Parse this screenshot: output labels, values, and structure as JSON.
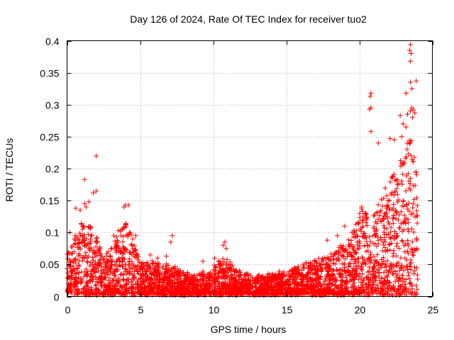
{
  "chart_data": {
    "type": "scatter",
    "title": "Day 126 of 2024, Rate Of TEC Index for receiver tuo2",
    "xlabel": "GPS time / hours",
    "ylabel": "ROTI / TECUs",
    "xlim": [
      0,
      25
    ],
    "ylim": [
      0,
      0.4
    ],
    "xticks": [
      "0",
      "5",
      "10",
      "15",
      "20",
      "25"
    ],
    "yticks": [
      "0",
      "0.05",
      "0.1",
      "0.15",
      "0.2",
      "0.25",
      "0.3",
      "0.35",
      "0.4"
    ],
    "xtick_values": [
      0,
      5,
      10,
      15,
      20,
      25
    ],
    "ytick_values": [
      0,
      0.05,
      0.1,
      0.15,
      0.2,
      0.25,
      0.3,
      0.35,
      0.4
    ],
    "grid": true,
    "marker": "plus",
    "color": "#ff0000",
    "envelope": [
      [
        0.0,
        0.06
      ],
      [
        0.5,
        0.09
      ],
      [
        1.0,
        0.12
      ],
      [
        1.5,
        0.11
      ],
      [
        2.0,
        0.1
      ],
      [
        2.5,
        0.06
      ],
      [
        3.0,
        0.07
      ],
      [
        3.5,
        0.1
      ],
      [
        4.0,
        0.12
      ],
      [
        4.5,
        0.09
      ],
      [
        5.0,
        0.05
      ],
      [
        6.0,
        0.05
      ],
      [
        7.0,
        0.05
      ],
      [
        8.0,
        0.035
      ],
      [
        9.0,
        0.03
      ],
      [
        10.0,
        0.045
      ],
      [
        10.8,
        0.06
      ],
      [
        11.5,
        0.04
      ],
      [
        12.5,
        0.03
      ],
      [
        13.5,
        0.03
      ],
      [
        14.5,
        0.035
      ],
      [
        15.5,
        0.04
      ],
      [
        16.5,
        0.05
      ],
      [
        17.5,
        0.06
      ],
      [
        18.5,
        0.07
      ],
      [
        19.5,
        0.09
      ],
      [
        20.2,
        0.14
      ],
      [
        20.8,
        0.12
      ],
      [
        21.5,
        0.15
      ],
      [
        22.0,
        0.18
      ],
      [
        22.5,
        0.2
      ],
      [
        23.0,
        0.22
      ],
      [
        23.5,
        0.26
      ],
      [
        24.0,
        0.18
      ]
    ],
    "outliers": [
      [
        23.5,
        0.394
      ],
      [
        23.45,
        0.385
      ],
      [
        23.55,
        0.38
      ],
      [
        23.5,
        0.368
      ],
      [
        23.5,
        0.335
      ],
      [
        23.6,
        0.325
      ],
      [
        23.2,
        0.318
      ],
      [
        23.9,
        0.337
      ],
      [
        20.8,
        0.318
      ],
      [
        20.75,
        0.313
      ],
      [
        20.8,
        0.295
      ],
      [
        20.7,
        0.293
      ],
      [
        23.6,
        0.295
      ],
      [
        23.7,
        0.292
      ],
      [
        23.5,
        0.29
      ],
      [
        23.65,
        0.28
      ],
      [
        23.8,
        0.287
      ],
      [
        23.3,
        0.285
      ],
      [
        22.8,
        0.283
      ],
      [
        23.0,
        0.27
      ],
      [
        20.8,
        0.258
      ],
      [
        23.2,
        0.265
      ],
      [
        21.3,
        0.24
      ],
      [
        22.1,
        0.247
      ],
      [
        22.4,
        0.245
      ],
      [
        22.9,
        0.25
      ],
      [
        2.0,
        0.22
      ],
      [
        1.2,
        0.183
      ],
      [
        1.8,
        0.162
      ],
      [
        2.0,
        0.165
      ],
      [
        1.5,
        0.148
      ],
      [
        1.2,
        0.145
      ],
      [
        4.0,
        0.143
      ],
      [
        4.2,
        0.143
      ],
      [
        3.9,
        0.14
      ],
      [
        1.3,
        0.14
      ],
      [
        0.6,
        0.138
      ],
      [
        0.9,
        0.135
      ],
      [
        7.2,
        0.095
      ],
      [
        7.1,
        0.085
      ],
      [
        10.8,
        0.085
      ],
      [
        10.7,
        0.08
      ],
      [
        10.9,
        0.075
      ],
      [
        3.2,
        0.095
      ],
      [
        4.5,
        0.09
      ],
      [
        4.7,
        0.095
      ],
      [
        18.5,
        0.095
      ],
      [
        17.8,
        0.088
      ],
      [
        19.0,
        0.11
      ],
      [
        19.5,
        0.1
      ],
      [
        0.2,
        0.1
      ],
      [
        10.1,
        0.06
      ],
      [
        5.7,
        0.065
      ],
      [
        6.2,
        0.06
      ],
      [
        6.8,
        0.063
      ],
      [
        9.3,
        0.055
      ]
    ]
  }
}
